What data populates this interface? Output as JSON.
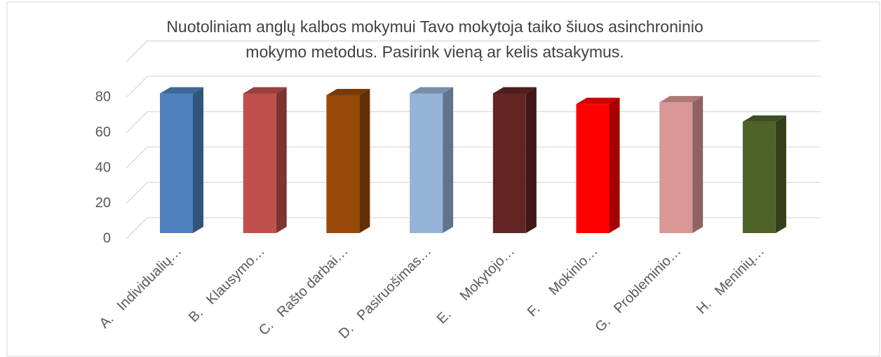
{
  "chart_data": {
    "type": "bar3d",
    "title": "Nuotoliniam anglų kalbos mokymui Tavo mokytoja taiko šiuos asinchroninio",
    "subtitle": "mokymo metodus. Pasirink vieną ar kelis atsakymus.",
    "categories": [
      "A.   Individualių…",
      "B.   Klausymo…",
      "C.   Rašto darbai…",
      "D.   Pasiruošimas…",
      "E.     Mokytojo…",
      "F.     Mokinio…",
      "G.   Probleminio…",
      "H.   Meninių…"
    ],
    "values": [
      79,
      79,
      78,
      79,
      79,
      73,
      74,
      63
    ],
    "colors": [
      "#4f81bd",
      "#c0504d",
      "#984807",
      "#95b3d7",
      "#632523",
      "#ff0000",
      "#d99694",
      "#4f6228"
    ],
    "ylim": [
      0,
      100
    ],
    "yticks": [
      0,
      20,
      40,
      60,
      80
    ],
    "grid": true
  }
}
